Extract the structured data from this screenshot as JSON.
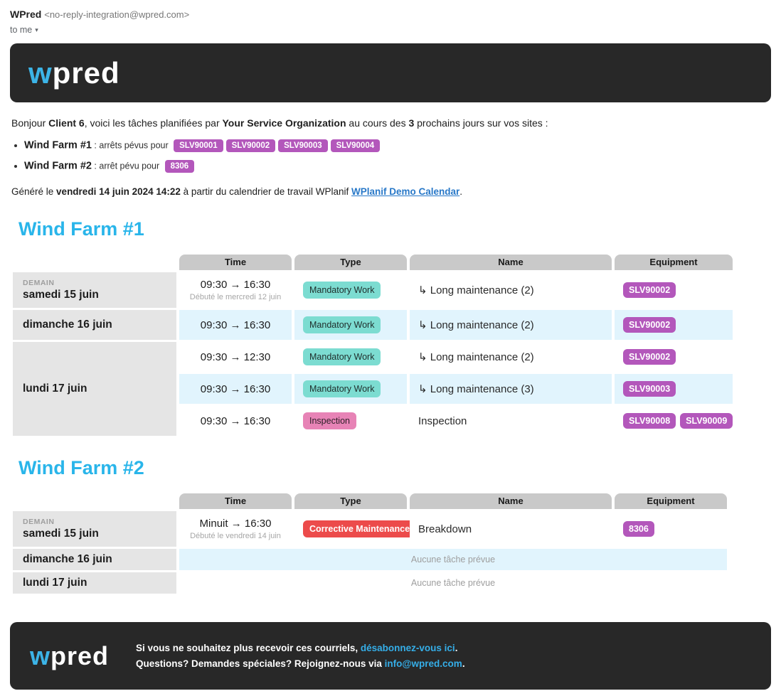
{
  "colors": {
    "banner_bg": "#282828",
    "logo_blue": "#3cb4e7",
    "farm_title_blue": "#29b5ea",
    "equipment_badge_purple": "#b357bb",
    "type_teal": "#7cdcd1",
    "type_pink": "#e783b6",
    "type_red": "#ec4b4b",
    "date_cell_gray": "#e5e5e5",
    "column_header_gray": "#c9c9c9",
    "row_shade_blue": "#e1f4fd",
    "body_link_blue": "#2878c8",
    "footer_link_blue": "#35aee8"
  },
  "email_header": {
    "sender_name": "WPred",
    "sender_address": "<no-reply-integration@wpred.com>",
    "to_label": "to me",
    "caret": "▾"
  },
  "brand": {
    "logo_w": "w",
    "logo_rest": "pred"
  },
  "intro": {
    "prefix": "Bonjour ",
    "client": "Client 6",
    "middle": ", voici les tâches planifiées par ",
    "organization": "Your Service Organization",
    "after_org": " au cours des ",
    "days": "3",
    "suffix": " prochains jours sur vos sites :"
  },
  "sites_summary": [
    {
      "name": "Wind Farm #1",
      "text": ": arrêts pévus pour",
      "badges": [
        "SLV90001",
        "SLV90002",
        "SLV90003",
        "SLV90004"
      ]
    },
    {
      "name": "Wind Farm #2",
      "text": ": arrêt pévu pour",
      "badges": [
        "8306"
      ]
    }
  ],
  "generated": {
    "prefix": "Généré le ",
    "datetime": "vendredi 14 juin 2024 14:22",
    "middle": " à partir du calendrier de travail WPlanif ",
    "link": "WPlanif Demo Calendar",
    "suffix": "."
  },
  "columns": [
    "Time",
    "Type",
    "Name",
    "Equipment"
  ],
  "empty_row_text": "Aucune tâche prévue",
  "farms": [
    {
      "title": "Wind Farm #1",
      "groups": [
        {
          "tag": "DEMAIN",
          "date": "samedi 15 juin",
          "rows": [
            {
              "time": "09:30 → 16:30",
              "time_note": "Débuté le mercredi 12 juin",
              "type": "Mandatory Work",
              "type_color": "teal",
              "name": "↳ Long maintenance (2)",
              "equipment": [
                "SLV90002"
              ],
              "shade": false
            }
          ]
        },
        {
          "tag": "",
          "date": "dimanche 16 juin",
          "rows": [
            {
              "time": "09:30 → 16:30",
              "time_note": "",
              "type": "Mandatory Work",
              "type_color": "teal",
              "name": "↳ Long maintenance (2)",
              "equipment": [
                "SLV90002"
              ],
              "shade": true
            }
          ]
        },
        {
          "tag": "",
          "date": "lundi 17 juin",
          "rows": [
            {
              "time": "09:30 → 12:30",
              "time_note": "",
              "type": "Mandatory Work",
              "type_color": "teal",
              "name": "↳ Long maintenance (2)",
              "equipment": [
                "SLV90002"
              ],
              "shade": false
            },
            {
              "time": "09:30 → 16:30",
              "time_note": "",
              "type": "Mandatory Work",
              "type_color": "teal",
              "name": "↳ Long maintenance (3)",
              "equipment": [
                "SLV90003"
              ],
              "shade": true
            },
            {
              "time": "09:30 → 16:30",
              "time_note": "",
              "type": "Inspection",
              "type_color": "pink",
              "name": "Inspection",
              "equipment": [
                "SLV90008",
                "SLV90009"
              ],
              "shade": false
            }
          ]
        }
      ]
    },
    {
      "title": "Wind Farm #2",
      "groups": [
        {
          "tag": "DEMAIN",
          "date": "samedi 15 juin",
          "rows": [
            {
              "time": "Minuit → 16:30",
              "time_note": "Débuté le vendredi 14 juin",
              "type": "Corrective Maintenance",
              "type_color": "red",
              "name": "Breakdown",
              "equipment": [
                "8306"
              ],
              "shade": false
            }
          ]
        },
        {
          "tag": "",
          "date": "dimanche 16 juin",
          "rows": [
            {
              "empty": true,
              "shade": true
            }
          ]
        },
        {
          "tag": "",
          "date": "lundi 17 juin",
          "rows": [
            {
              "empty": true,
              "shade": false
            }
          ]
        }
      ]
    }
  ],
  "footer": {
    "line1_prefix": "Si vous ne souhaitez plus recevoir ces courriels, ",
    "line1_link": "désabonnez-vous ici",
    "line1_suffix": ".",
    "line2_prefix": "Questions? Demandes spéciales? Rejoignez-nous via ",
    "line2_link": "info@wpred.com",
    "line2_suffix": "."
  }
}
